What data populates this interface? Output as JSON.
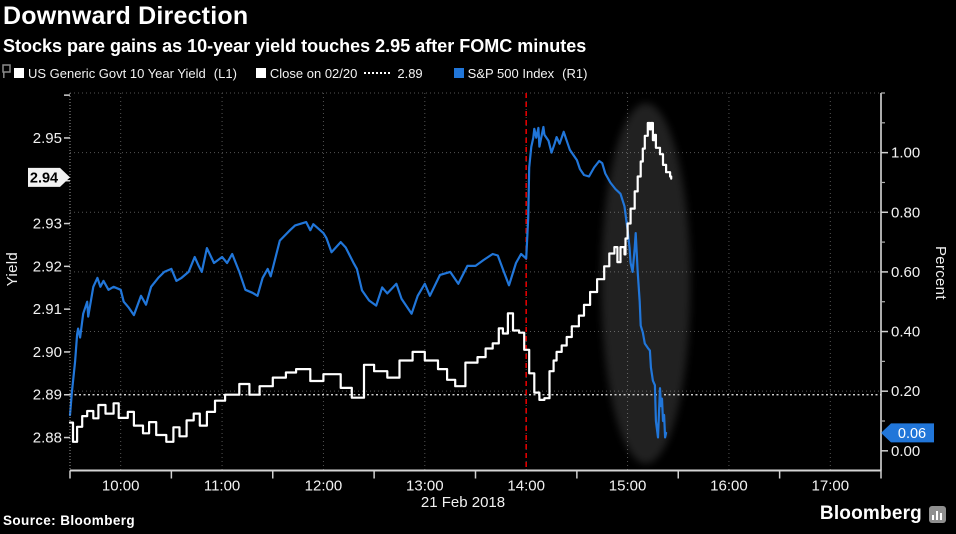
{
  "header": {
    "title": "Downward Direction",
    "subtitle": "Stocks pare gains as 10-year yield touches 2.95 after FOMC minutes"
  },
  "legend": {
    "pin_icon": "chart-pin-icon",
    "items": [
      {
        "marker_color": "#ffffff",
        "label": "US Generic Govt 10 Year Yield",
        "suffix": "(L1)"
      },
      {
        "marker_color": "#ffffff",
        "label": "Close on 02/20",
        "dash": "----",
        "value": "2.89"
      },
      {
        "marker_color": "#2176d9",
        "label": "S&P 500 Index",
        "suffix": "(R1)"
      }
    ]
  },
  "footer": {
    "source": "Source: Bloomberg",
    "brand": "Bloomberg"
  },
  "chart_data": {
    "type": "line",
    "title": "Downward Direction",
    "x_axis": {
      "date_label": "21 Feb 2018",
      "range_hours": [
        9.5,
        17.5
      ],
      "tick_hours": [
        10,
        11,
        12,
        13,
        14,
        15,
        16,
        17
      ],
      "tick_labels": [
        "10:00",
        "11:00",
        "12:00",
        "13:00",
        "14:00",
        "15:00",
        "16:00",
        "17:00"
      ],
      "minor_tick_hours": [
        9.5,
        10.5,
        11.5,
        12.5,
        13.5,
        14.5,
        15.5,
        16.5,
        17.5
      ]
    },
    "left_axis": {
      "label": "Yield",
      "range": [
        2.8723,
        2.9605
      ],
      "tick_values": [
        2.88,
        2.89,
        2.9,
        2.91,
        2.92,
        2.93,
        2.94,
        2.95
      ],
      "tick_labels": [
        "2.88",
        "2.89",
        "2.90",
        "2.91",
        "2.92",
        "2.93",
        "2.94",
        "2.95"
      ],
      "hidden_tick_label": "2.94",
      "extra_tick_values": [
        2.96
      ],
      "last_price_label": "2.94",
      "last_price_value": 2.9408
    },
    "right_axis": {
      "label": "Percent",
      "range": [
        -0.066,
        1.2
      ],
      "tick_values": [
        0.0,
        0.2,
        0.4,
        0.6,
        0.8,
        1.0
      ],
      "tick_labels": [
        "0.00",
        "0.20",
        "0.40",
        "0.60",
        "0.80",
        "1.00"
      ],
      "minor_tick_values": [
        0.1,
        0.3,
        0.5,
        0.7,
        0.9,
        1.1,
        1.2
      ],
      "last_price_label": "0.06",
      "last_price_value": 0.06
    },
    "gridline_values_right": [
      0.2,
      0.4,
      0.6,
      0.8,
      1.0,
      1.2
    ],
    "reference_line": {
      "label": "Close on 02/20",
      "value": 2.89,
      "axis": "L1",
      "color": "#eeeeee",
      "style": "dotted"
    },
    "event_line": {
      "time": 14.0,
      "color": "#e00000",
      "style": "dashed"
    },
    "highlight_ellipse": {
      "time_center": 15.18,
      "time_radius": 0.44,
      "yield_center": 2.916,
      "yield_radius": 0.0421,
      "color": "#c4c4c4",
      "opacity": 0.17
    },
    "series": [
      {
        "name": "S&P 500 Index",
        "axis": "R1",
        "color": "#2176d9",
        "interpolation": "linear",
        "points": [
          [
            9.5,
            0.12
          ],
          [
            9.52,
            0.2
          ],
          [
            9.55,
            0.3
          ],
          [
            9.57,
            0.39
          ],
          [
            9.58,
            0.41
          ],
          [
            9.6,
            0.38
          ],
          [
            9.63,
            0.46
          ],
          [
            9.67,
            0.5
          ],
          [
            9.68,
            0.45
          ],
          [
            9.73,
            0.55
          ],
          [
            9.77,
            0.58
          ],
          [
            9.8,
            0.55
          ],
          [
            9.83,
            0.57
          ],
          [
            9.88,
            0.54
          ],
          [
            9.93,
            0.55
          ],
          [
            10.0,
            0.54
          ],
          [
            10.03,
            0.5
          ],
          [
            10.08,
            0.48
          ],
          [
            10.13,
            0.455
          ],
          [
            10.2,
            0.52
          ],
          [
            10.25,
            0.49
          ],
          [
            10.3,
            0.55
          ],
          [
            10.37,
            0.58
          ],
          [
            10.43,
            0.6
          ],
          [
            10.5,
            0.61
          ],
          [
            10.55,
            0.57
          ],
          [
            10.6,
            0.58
          ],
          [
            10.67,
            0.6
          ],
          [
            10.73,
            0.65
          ],
          [
            10.77,
            0.62
          ],
          [
            10.8,
            0.6
          ],
          [
            10.85,
            0.68
          ],
          [
            10.92,
            0.63
          ],
          [
            11.0,
            0.65
          ],
          [
            11.05,
            0.63
          ],
          [
            11.1,
            0.66
          ],
          [
            11.17,
            0.6
          ],
          [
            11.23,
            0.54
          ],
          [
            11.3,
            0.53
          ],
          [
            11.35,
            0.52
          ],
          [
            11.4,
            0.58
          ],
          [
            11.45,
            0.61
          ],
          [
            11.48,
            0.585
          ],
          [
            11.57,
            0.705
          ],
          [
            11.67,
            0.74
          ],
          [
            11.72,
            0.756
          ],
          [
            11.83,
            0.767
          ],
          [
            11.87,
            0.74
          ],
          [
            11.9,
            0.76
          ],
          [
            12.0,
            0.73
          ],
          [
            12.03,
            0.713
          ],
          [
            12.08,
            0.666
          ],
          [
            12.17,
            0.7
          ],
          [
            12.22,
            0.682
          ],
          [
            12.3,
            0.628
          ],
          [
            12.33,
            0.61
          ],
          [
            12.38,
            0.538
          ],
          [
            12.45,
            0.504
          ],
          [
            12.52,
            0.487
          ],
          [
            12.58,
            0.548
          ],
          [
            12.63,
            0.528
          ],
          [
            12.72,
            0.56
          ],
          [
            12.77,
            0.51
          ],
          [
            12.87,
            0.46
          ],
          [
            12.93,
            0.52
          ],
          [
            13.0,
            0.56
          ],
          [
            13.05,
            0.52
          ],
          [
            13.15,
            0.59
          ],
          [
            13.25,
            0.6
          ],
          [
            13.33,
            0.56
          ],
          [
            13.42,
            0.62
          ],
          [
            13.5,
            0.62
          ],
          [
            13.58,
            0.64
          ],
          [
            13.67,
            0.66
          ],
          [
            13.72,
            0.655
          ],
          [
            13.78,
            0.6
          ],
          [
            13.83,
            0.555
          ],
          [
            13.9,
            0.63
          ],
          [
            13.95,
            0.66
          ],
          [
            14.0,
            0.645
          ],
          [
            14.02,
            0.78
          ],
          [
            14.03,
            0.95
          ],
          [
            14.05,
            1.02
          ],
          [
            14.07,
            1.05
          ],
          [
            14.08,
            1.08
          ],
          [
            14.1,
            1.05
          ],
          [
            14.12,
            1.083
          ],
          [
            14.13,
            1.02
          ],
          [
            14.17,
            1.086
          ],
          [
            14.18,
            1.06
          ],
          [
            14.22,
            1.04
          ],
          [
            14.25,
            1.0
          ],
          [
            14.28,
            1.03
          ],
          [
            14.3,
            1.052
          ],
          [
            14.33,
            1.03
          ],
          [
            14.37,
            1.07
          ],
          [
            14.4,
            1.04
          ],
          [
            14.43,
            1.01
          ],
          [
            14.47,
            0.99
          ],
          [
            14.5,
            0.975
          ],
          [
            14.53,
            0.945
          ],
          [
            14.57,
            0.925
          ],
          [
            14.62,
            0.92
          ],
          [
            14.67,
            0.95
          ],
          [
            14.72,
            0.972
          ],
          [
            14.75,
            0.965
          ],
          [
            14.78,
            0.93
          ],
          [
            14.83,
            0.9
          ],
          [
            14.88,
            0.878
          ],
          [
            14.93,
            0.862
          ],
          [
            14.97,
            0.82
          ],
          [
            15.0,
            0.74
          ],
          [
            15.02,
            0.68
          ],
          [
            15.03,
            0.63
          ],
          [
            15.05,
            0.6
          ],
          [
            15.07,
            0.68
          ],
          [
            15.08,
            0.73
          ],
          [
            15.1,
            0.6
          ],
          [
            15.12,
            0.5
          ],
          [
            15.13,
            0.42
          ],
          [
            15.15,
            0.397
          ],
          [
            15.17,
            0.36
          ],
          [
            15.2,
            0.345
          ],
          [
            15.22,
            0.336
          ],
          [
            15.23,
            0.28
          ],
          [
            15.25,
            0.235
          ],
          [
            15.27,
            0.22
          ],
          [
            15.28,
            0.1
          ],
          [
            15.3,
            0.045
          ],
          [
            15.32,
            0.21
          ],
          [
            15.33,
            0.15
          ],
          [
            15.34,
            0.175
          ],
          [
            15.35,
            0.1
          ],
          [
            15.36,
            0.12
          ],
          [
            15.37,
            0.045
          ],
          [
            15.38,
            0.06
          ]
        ]
      },
      {
        "name": "US Generic Govt 10 Year Yield",
        "axis": "L1",
        "color": "#ffffff",
        "interpolation": "step",
        "points": [
          [
            9.5,
            2.8835
          ],
          [
            9.53,
            2.879
          ],
          [
            9.57,
            2.8825
          ],
          [
            9.62,
            2.885
          ],
          [
            9.67,
            2.8862
          ],
          [
            9.73,
            2.8845
          ],
          [
            9.78,
            2.8876
          ],
          [
            9.85,
            2.8856
          ],
          [
            9.93,
            2.888
          ],
          [
            9.98,
            2.8846
          ],
          [
            10.07,
            2.886
          ],
          [
            10.13,
            2.8828
          ],
          [
            10.22,
            2.881
          ],
          [
            10.28,
            2.8836
          ],
          [
            10.35,
            2.8806
          ],
          [
            10.45,
            2.879
          ],
          [
            10.52,
            2.8824
          ],
          [
            10.58,
            2.8803
          ],
          [
            10.65,
            2.884
          ],
          [
            10.72,
            2.8856
          ],
          [
            10.78,
            2.8828
          ],
          [
            10.85,
            2.886
          ],
          [
            10.93,
            2.8886
          ],
          [
            11.03,
            2.89
          ],
          [
            11.17,
            2.8925
          ],
          [
            11.27,
            2.89
          ],
          [
            11.37,
            2.892
          ],
          [
            11.5,
            2.894
          ],
          [
            11.63,
            2.8952
          ],
          [
            11.73,
            2.896
          ],
          [
            11.87,
            2.8932
          ],
          [
            12.0,
            2.8948
          ],
          [
            12.17,
            2.8916
          ],
          [
            12.28,
            2.8893
          ],
          [
            12.4,
            2.897
          ],
          [
            12.5,
            2.8955
          ],
          [
            12.63,
            2.894
          ],
          [
            12.75,
            2.898
          ],
          [
            12.88,
            2.9
          ],
          [
            13.0,
            2.898
          ],
          [
            13.13,
            2.896
          ],
          [
            13.22,
            2.8935
          ],
          [
            13.3,
            2.892
          ],
          [
            13.4,
            2.8975
          ],
          [
            13.52,
            2.8988
          ],
          [
            13.6,
            2.9008
          ],
          [
            13.67,
            2.902
          ],
          [
            13.73,
            2.9055
          ],
          [
            13.77,
            2.9043
          ],
          [
            13.82,
            2.909
          ],
          [
            13.87,
            2.905
          ],
          [
            13.93,
            2.9045
          ],
          [
            13.98,
            2.9005
          ],
          [
            14.03,
            2.895
          ],
          [
            14.08,
            2.8905
          ],
          [
            14.13,
            2.8888
          ],
          [
            14.18,
            2.8892
          ],
          [
            14.23,
            2.8955
          ],
          [
            14.27,
            2.898
          ],
          [
            14.3,
            2.9
          ],
          [
            14.35,
            2.9015
          ],
          [
            14.4,
            2.9035
          ],
          [
            14.45,
            2.906
          ],
          [
            14.52,
            2.9085
          ],
          [
            14.57,
            2.911
          ],
          [
            14.63,
            2.914
          ],
          [
            14.7,
            2.917
          ],
          [
            14.77,
            2.92
          ],
          [
            14.82,
            2.923
          ],
          [
            14.87,
            2.9245
          ],
          [
            14.9,
            2.921
          ],
          [
            14.93,
            2.9245
          ],
          [
            14.97,
            2.9228
          ],
          [
            14.98,
            2.9265
          ],
          [
            15.0,
            2.93
          ],
          [
            15.03,
            2.9335
          ],
          [
            15.07,
            2.9375
          ],
          [
            15.1,
            2.941
          ],
          [
            15.13,
            2.9445
          ],
          [
            15.15,
            2.9475
          ],
          [
            15.17,
            2.9505
          ],
          [
            15.2,
            2.9535
          ],
          [
            15.22,
            2.952
          ],
          [
            15.23,
            2.9535
          ],
          [
            15.25,
            2.9495
          ],
          [
            15.27,
            2.9507
          ],
          [
            15.28,
            2.9477
          ],
          [
            15.32,
            2.9462
          ],
          [
            15.35,
            2.9437
          ],
          [
            15.38,
            2.942
          ],
          [
            15.42,
            2.941
          ],
          [
            15.43,
            2.9405
          ]
        ]
      }
    ]
  }
}
